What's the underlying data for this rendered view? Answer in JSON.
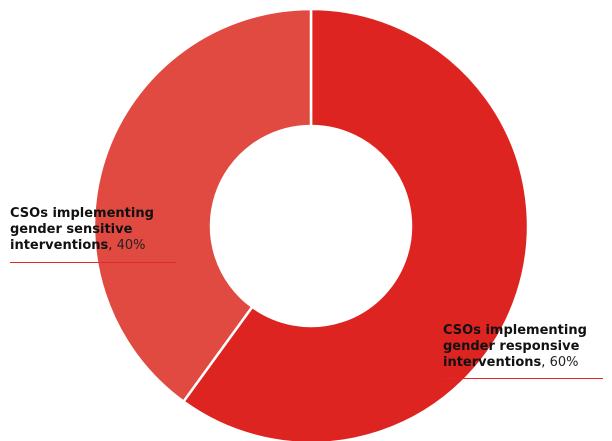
{
  "chart_data": {
    "type": "pie",
    "variant": "donut",
    "slices": [
      {
        "label_lines": [
          "CSOs implementing",
          "gender responsive",
          "interventions"
        ],
        "value": 60,
        "value_text": "60%",
        "color": "#de2420"
      },
      {
        "label_lines": [
          "CSOs implementing",
          "gender sensitive",
          "interventions"
        ],
        "value": 40,
        "value_text": "40%",
        "color": "#e14a40"
      }
    ],
    "separator_color": "#ffffff",
    "label_rule_color": "#e02a27"
  }
}
